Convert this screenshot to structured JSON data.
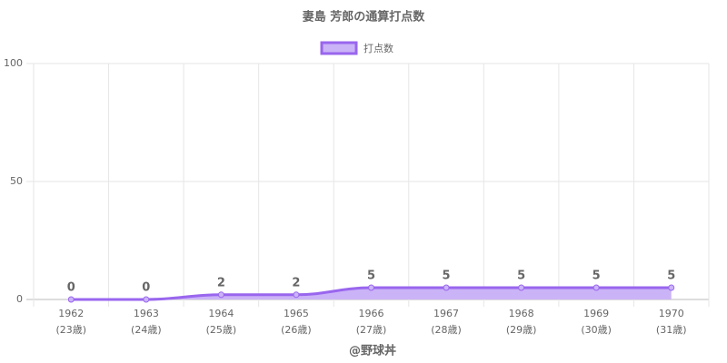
{
  "chart_data": {
    "type": "line",
    "title": "妻島 芳郎の通算打点数",
    "categories": [
      "1962",
      "1963",
      "1964",
      "1965",
      "1966",
      "1967",
      "1968",
      "1969",
      "1970"
    ],
    "sublabels": [
      "(23歳)",
      "(24歳)",
      "(25歳)",
      "(26歳)",
      "(27歳)",
      "(28歳)",
      "(29歳)",
      "(30歳)",
      "(31歳)"
    ],
    "series": [
      {
        "name": "打点数",
        "color": "#9966ee",
        "fill": "#cbb3f7",
        "values": [
          0,
          0,
          2,
          2,
          5,
          5,
          5,
          5,
          5
        ]
      }
    ],
    "ylim": [
      0,
      100
    ],
    "yticks": [
      0,
      50,
      100
    ],
    "grid": true,
    "smooth": true,
    "legend": "top",
    "footer": "@野球丼"
  }
}
